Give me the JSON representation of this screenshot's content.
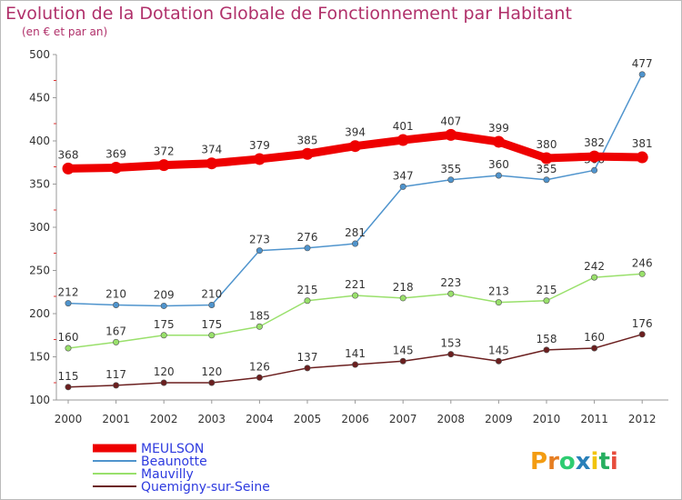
{
  "chart_data": {
    "type": "line",
    "title": "Evolution de la Dotation Globale de Fonctionnement par Habitant",
    "subtitle": "(en € et par an)",
    "x": [
      "2000",
      "2001",
      "2002",
      "2003",
      "2004",
      "2005",
      "2006",
      "2007",
      "2008",
      "2009",
      "2010",
      "2011",
      "2012"
    ],
    "ylim": [
      100,
      500
    ],
    "yticks": [
      100,
      150,
      200,
      250,
      300,
      350,
      400,
      450,
      500
    ],
    "grid": false,
    "legend_position": "bottom-left",
    "series": [
      {
        "name": "MEULSON",
        "color": "#ee0000",
        "values": [
          368,
          369,
          372,
          374,
          379,
          385,
          394,
          401,
          407,
          399,
          380,
          382,
          381
        ]
      },
      {
        "name": "Beaunotte",
        "color": "#4f94cd",
        "values": [
          212,
          210,
          209,
          210,
          273,
          276,
          281,
          347,
          355,
          360,
          355,
          366,
          477
        ]
      },
      {
        "name": "Mauvilly",
        "color": "#99e06b",
        "values": [
          160,
          167,
          175,
          175,
          185,
          215,
          221,
          218,
          223,
          213,
          215,
          242,
          246
        ]
      },
      {
        "name": "Quemigny-sur-Seine",
        "color": "#6b1f1f",
        "values": [
          115,
          117,
          120,
          120,
          126,
          137,
          141,
          145,
          153,
          145,
          158,
          160,
          176
        ]
      }
    ],
    "data_labels": [
      [
        "368",
        "369",
        "372",
        "374",
        "379",
        "385",
        "394",
        "401",
        "407",
        "399",
        "380",
        "382",
        "381"
      ],
      [
        "212",
        "210",
        "209",
        "210",
        "273",
        "276",
        "281",
        "347",
        "355",
        "360",
        "355",
        "366",
        "477"
      ],
      [
        "160",
        "167",
        "175",
        "175",
        "185",
        "215",
        "221",
        "218",
        "223",
        "213",
        "215",
        "242",
        "246"
      ],
      [
        "115",
        "117",
        "120",
        "120",
        "126",
        "137",
        "141",
        "145",
        "153",
        "145",
        "158",
        "160",
        "176"
      ]
    ]
  },
  "logo": {
    "text": "Proxiti",
    "letters": [
      "P",
      "r",
      "o",
      "x",
      "i",
      "t",
      "i"
    ],
    "colors": [
      "#f39c12",
      "#e67e22",
      "#2ecc71",
      "#2980b9",
      "#f1c40f",
      "#27ae60",
      "#e74c3c"
    ]
  }
}
